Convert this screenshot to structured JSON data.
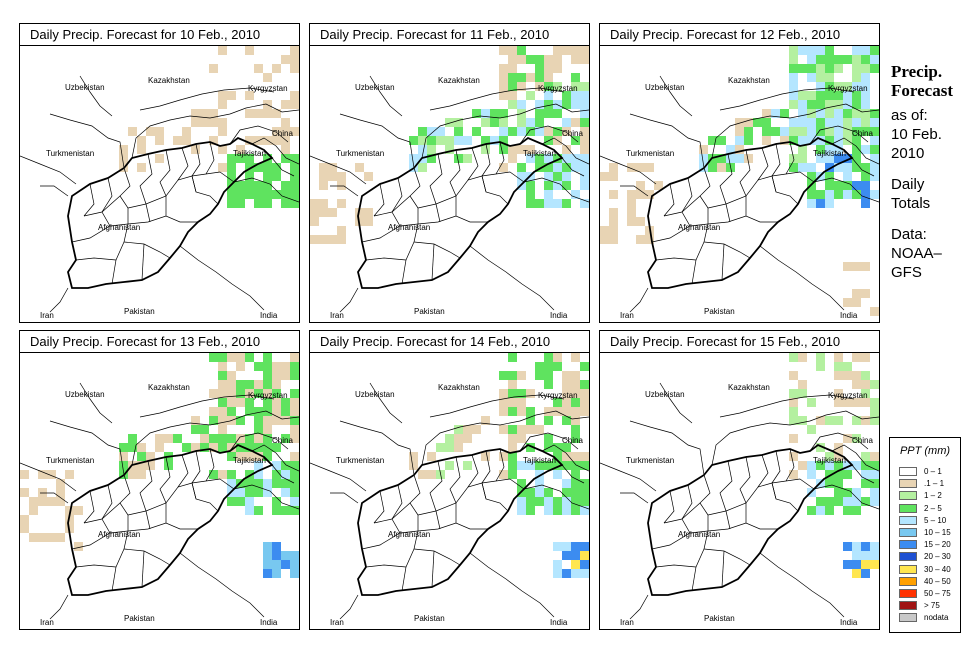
{
  "panels": [
    {
      "title_prefix": "Daily Precip. Forecast for",
      "date": "10 Feb., 2010",
      "intensity": 0
    },
    {
      "title_prefix": "Daily Precip. Forecast for",
      "date": "11 Feb., 2010",
      "intensity": 1
    },
    {
      "title_prefix": "Daily Precip. Forecast for",
      "date": "12 Feb., 2010",
      "intensity": 2
    },
    {
      "title_prefix": "Daily Precip. Forecast for",
      "date": "13 Feb., 2010",
      "intensity": 3
    },
    {
      "title_prefix": "Daily Precip. Forecast for",
      "date": "14 Feb., 2010",
      "intensity": 4
    },
    {
      "title_prefix": "Daily Precip. Forecast for",
      "date": "15 Feb., 2010",
      "intensity": 5
    }
  ],
  "map_labels": {
    "uzbekistan": "Uzbekistan",
    "kazakhstan": "Kazakhstan",
    "kyrgyzstan": "Kyrgyzstan",
    "china": "China",
    "turkmenistan": "Turkmenistan",
    "tajikistan": "Tajikistan",
    "afghanistan": "Afghanistan",
    "iran": "Iran",
    "pakistan": "Pakistan",
    "india": "India"
  },
  "sidebar": {
    "title_line1": "Precip.",
    "title_line2": "Forecast",
    "asof": "as of:",
    "date_line1": "10 Feb.",
    "date_line2": "2010",
    "totals_line1": "Daily",
    "totals_line2": "Totals",
    "data_line1": "Data:",
    "data_line2": "NOAA–",
    "data_line3": "GFS"
  },
  "legend": {
    "title": "PPT (mm)",
    "items": [
      {
        "label": "0 – 1",
        "color": "#ffffff"
      },
      {
        "label": ".1 – 1",
        "color": "#e8d4b4"
      },
      {
        "label": "1 – 2",
        "color": "#b4f0a0"
      },
      {
        "label": "2 – 5",
        "color": "#5fe35f"
      },
      {
        "label": "5 – 10",
        "color": "#b4e6ff"
      },
      {
        "label": "10 – 15",
        "color": "#78c8f0"
      },
      {
        "label": "15 – 20",
        "color": "#3c8cf0"
      },
      {
        "label": "20 – 30",
        "color": "#1e50d2"
      },
      {
        "label": "30 – 40",
        "color": "#ffe650"
      },
      {
        "label": "40 – 50",
        "color": "#ffa000"
      },
      {
        "label": "50 – 75",
        "color": "#ff3200"
      },
      {
        "label": "> 75",
        "color": "#a01414"
      },
      {
        "label": "nodata",
        "color": "#c8c8c8"
      }
    ]
  }
}
